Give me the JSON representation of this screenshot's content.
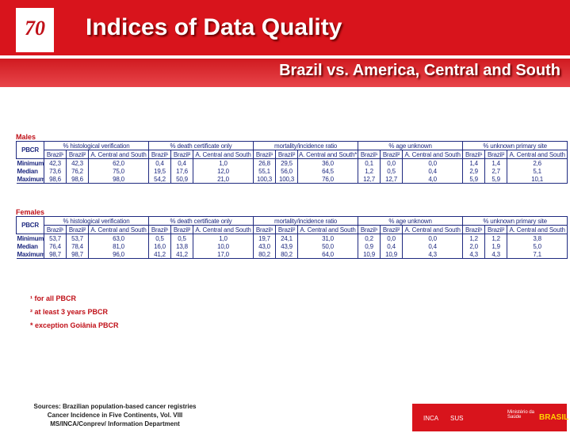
{
  "header": {
    "logo": "70",
    "title": "Indices of Data Quality",
    "subtitle": "Brazil vs. America, Central and South"
  },
  "tables": [
    {
      "label": "Males",
      "pbcr": "PBCR",
      "groups": [
        "% histological verification",
        "% death certificate only",
        "mortality/incidence ratio",
        "% age unknown",
        "% unknown primary site"
      ],
      "subheaders": [
        [
          "Brazil¹",
          "Brazil²",
          "A. Central and South"
        ],
        [
          "Brazil¹",
          "Brazil²",
          "A. Central and South"
        ],
        [
          "Brazil¹",
          "Brazil²",
          "A. Central and South*"
        ],
        [
          "Brazil¹",
          "Brazil²",
          "A. Central and South"
        ],
        [
          "Brazil¹",
          "Brazil²",
          "A. Central and South"
        ]
      ],
      "rows": [
        {
          "label": "Minimum",
          "cells": [
            "42,3",
            "42,3",
            "62,0",
            "0,4",
            "0,4",
            "1,0",
            "26,8",
            "29,5",
            "36,0",
            "0,1",
            "0,0",
            "0,0",
            "1,4",
            "1,4",
            "2,6"
          ]
        },
        {
          "label": "Median",
          "cells": [
            "73,6",
            "76,2",
            "75,0",
            "19,5",
            "17,6",
            "12,0",
            "55,1",
            "56,0",
            "64,5",
            "1,2",
            "0,5",
            "0,4",
            "2,9",
            "2,7",
            "5,1"
          ]
        },
        {
          "label": "Maximum",
          "cells": [
            "98,6",
            "98,6",
            "98,0",
            "54,2",
            "50,9",
            "21,0",
            "100,3",
            "100,3",
            "76,0",
            "12,7",
            "12,7",
            "4,0",
            "5,9",
            "5,9",
            "10,1"
          ]
        }
      ]
    },
    {
      "label": "Females",
      "pbcr": "PBCR",
      "groups": [
        "% histological verification",
        "% death certificate only",
        "mortality/incidence ratio",
        "% age unknown",
        "% unknown primary site"
      ],
      "subheaders": [
        [
          "Brazil¹",
          "Brazil²",
          "A. Central and South"
        ],
        [
          "Brazil¹",
          "Brazil²",
          "A. Central and South"
        ],
        [
          "Brazil¹",
          "Brazil²",
          "A. Central and South"
        ],
        [
          "Brazil¹",
          "Brazil²",
          "A. Central and South"
        ],
        [
          "Brazil¹",
          "Brazil²",
          "A. Central and South"
        ]
      ],
      "rows": [
        {
          "label": "Minimum",
          "cells": [
            "53,7",
            "53,7",
            "63,0",
            "0,5",
            "0,5",
            "1,0",
            "19,7",
            "24,1",
            "31,0",
            "0,2",
            "0,0",
            "0,0",
            "1,2",
            "1,2",
            "3,8"
          ]
        },
        {
          "label": "Median",
          "cells": [
            "76,4",
            "78,4",
            "81,0",
            "16,0",
            "13,8",
            "10,0",
            "43,0",
            "43,9",
            "50,0",
            "0,9",
            "0,4",
            "0,4",
            "2,0",
            "1,9",
            "5,0"
          ]
        },
        {
          "label": "Maximum",
          "cells": [
            "98,7",
            "98,7",
            "96,0",
            "41,2",
            "41,2",
            "17,0",
            "80,2",
            "80,2",
            "64,0",
            "10,9",
            "10,9",
            "4,3",
            "4,3",
            "4,3",
            "7,1"
          ]
        }
      ]
    }
  ],
  "footnotes": [
    "¹ for all PBCR",
    "² at least 3 years PBCR",
    "* exception Goiânia PBCR"
  ],
  "sources": [
    "Sources: Brazilian population-based cancer registries",
    "Cancer Incidence in Five Continents, Vol. VIII",
    "MS/INCA/Conprev/ Information Department"
  ],
  "footer_logos": [
    "INCA",
    "SUS",
    "Ministério da Saúde",
    "BRASIL"
  ]
}
